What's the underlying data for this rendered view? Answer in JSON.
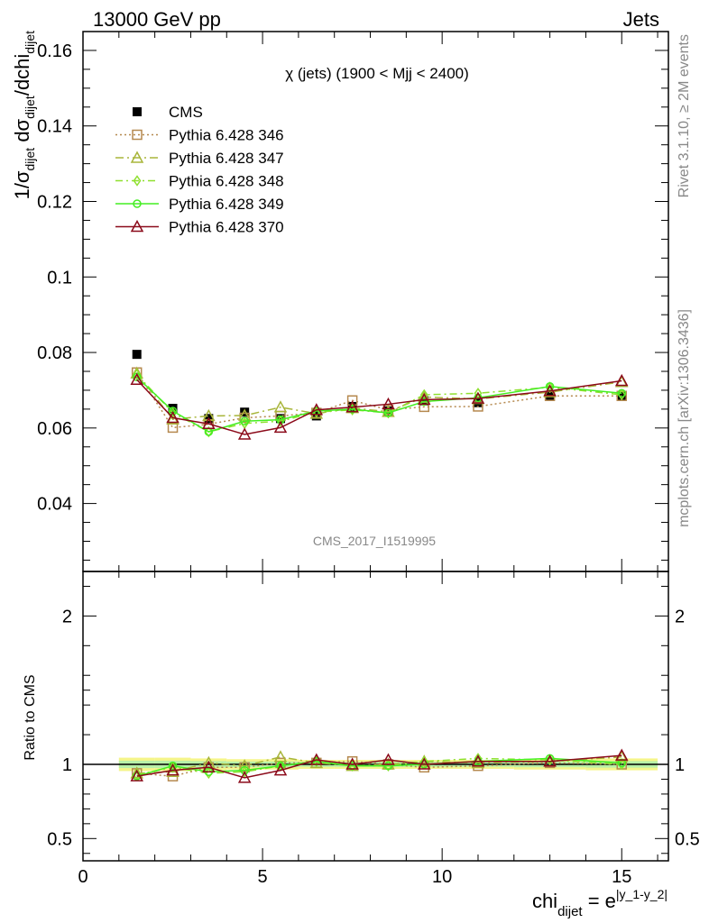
{
  "header": {
    "left": "13000 GeV pp",
    "right": "Jets"
  },
  "side_labels": {
    "rivet": "Rivet 3.1.10, ≥ 2M events",
    "mcplots": "mcplots.cern.ch [arXiv:1306.3436]"
  },
  "watermark": "CMS_2017_I1519995",
  "chart_data": {
    "type": "line",
    "title": "χ (jets) (1900 < Mjj < 2400)",
    "xlabel": "chi_dijet = e^|y_1-y_2|",
    "ylabel": "1/σ_dijet dσ_dijet/dchi_dijet",
    "ratio_ylabel": "Ratio to CMS",
    "xlim": [
      0,
      16.3
    ],
    "ylim": [
      0.022,
      0.165
    ],
    "ratio_ylim": [
      0.35,
      2.3
    ],
    "x_ticks": [
      0,
      5,
      10,
      15
    ],
    "y_ticks": [
      0.04,
      0.06,
      0.08,
      0.1,
      0.12,
      0.14,
      0.16
    ],
    "ratio_ticks": [
      0.5,
      1,
      2
    ],
    "x_tick_labels": [
      "0",
      "5",
      "10",
      "15"
    ],
    "y_tick_labels": [
      "0.04",
      "0.06",
      "0.08",
      "0.1",
      "0.12",
      "0.14",
      "0.16"
    ],
    "ratio_tick_labels": [
      "0.5",
      "1",
      "2"
    ],
    "legend_position": "top-left",
    "x": [
      1.5,
      2.5,
      3.5,
      4.5,
      5.5,
      6.5,
      7.5,
      8.5,
      9.5,
      11,
      13,
      15
    ],
    "x_edges": [
      1,
      2,
      3,
      4,
      5,
      6,
      7,
      8,
      9,
      10,
      12,
      14,
      16
    ],
    "data": {
      "name": "CMS",
      "values": [
        0.0795,
        0.0652,
        0.0625,
        0.0642,
        0.0625,
        0.0632,
        0.0657,
        0.0645,
        0.0672,
        0.0667,
        0.0685,
        0.0685
      ],
      "errors": [
        0.0008,
        0.0006,
        0.0006,
        0.0006,
        0.0006,
        0.0005,
        0.0005,
        0.0005,
        0.0005,
        0.0005,
        0.0005,
        0.0006
      ],
      "band_rel_errors": [
        0.045,
        0.045,
        0.04,
        0.035,
        0.035,
        0.03,
        0.03,
        0.03,
        0.03,
        0.03,
        0.035,
        0.04
      ],
      "color": "#000000"
    },
    "series": [
      {
        "name": "Pythia 6.428 346",
        "color": "#b5894f",
        "dash": "2,3",
        "marker": "square",
        "values": [
          0.0747,
          0.0601,
          0.061,
          0.0627,
          0.0632,
          0.064,
          0.0673,
          0.0648,
          0.0656,
          0.0657,
          0.0685,
          0.0685
        ],
        "ratio": [
          0.94,
          0.92,
          0.98,
          0.98,
          1.01,
          1.01,
          1.02,
          1.0,
          0.98,
          0.99,
          1.01,
          1.0
        ]
      },
      {
        "name": "Pythia 6.428 347",
        "color": "#a8b53a",
        "dash": "9,4,2,4",
        "marker": "triangle",
        "values": [
          0.0745,
          0.0623,
          0.0632,
          0.0633,
          0.0655,
          0.0638,
          0.0653,
          0.0643,
          0.0682,
          0.0677,
          0.0695,
          0.0722
        ],
        "ratio": [
          0.94,
          0.95,
          1.01,
          0.99,
          1.05,
          1.01,
          0.99,
          1.0,
          1.02,
          1.01,
          1.02,
          1.05
        ]
      },
      {
        "name": "Pythia 6.428 348",
        "color": "#8fe02f",
        "dash": "8,4,2,4",
        "marker": "diamond",
        "values": [
          0.0742,
          0.064,
          0.059,
          0.0612,
          0.0618,
          0.0642,
          0.0648,
          0.064,
          0.0688,
          0.0692,
          0.0708,
          0.0688
        ],
        "ratio": [
          0.93,
          0.98,
          0.94,
          0.95,
          0.99,
          1.02,
          0.99,
          0.99,
          1.02,
          1.04,
          1.03,
          1.0
        ]
      },
      {
        "name": "Pythia 6.428 349",
        "color": "#44ee22",
        "dash": "",
        "marker": "circle",
        "values": [
          0.0735,
          0.0645,
          0.059,
          0.0618,
          0.0622,
          0.0645,
          0.065,
          0.064,
          0.067,
          0.068,
          0.071,
          0.0692
        ],
        "ratio": [
          0.92,
          0.99,
          0.95,
          0.96,
          0.99,
          1.02,
          0.99,
          0.99,
          1.0,
          1.02,
          1.04,
          1.01
        ]
      },
      {
        "name": "Pythia 6.428 370",
        "color": "#8b0a1a",
        "dash": "",
        "marker": "triangle",
        "values": [
          0.0728,
          0.0627,
          0.0611,
          0.0583,
          0.0601,
          0.0648,
          0.0655,
          0.0663,
          0.0675,
          0.0678,
          0.0698,
          0.0725
        ],
        "ratio": [
          0.92,
          0.96,
          0.98,
          0.91,
          0.96,
          1.03,
          1.0,
          1.03,
          1.0,
          1.02,
          1.02,
          1.06
        ]
      }
    ]
  }
}
